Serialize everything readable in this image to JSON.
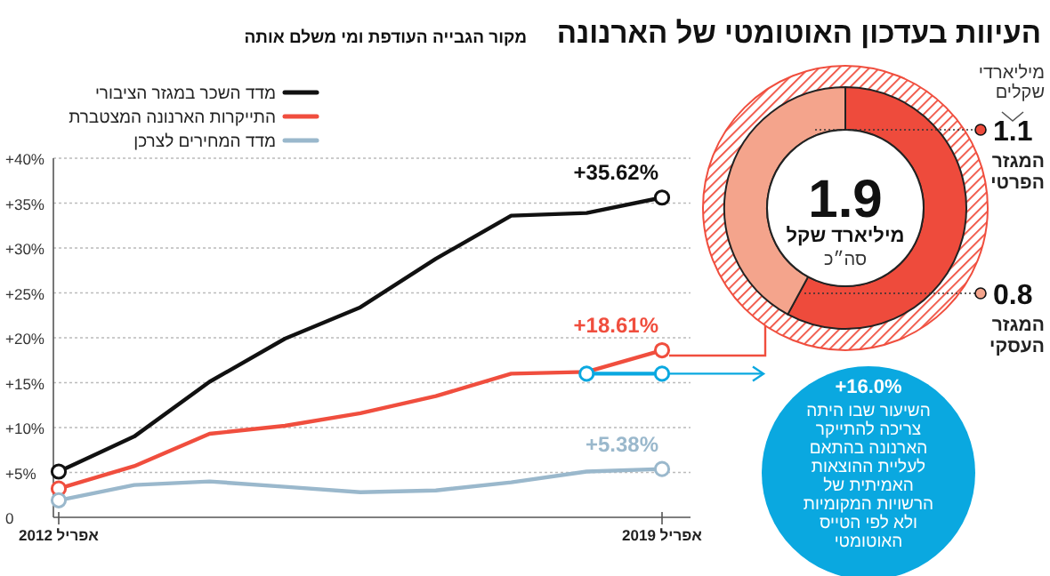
{
  "chart_data": [
    {
      "type": "line",
      "title": "העיוות בעדכון האוטומטי של הארנונה",
      "subtitle": "מקור הגבייה העודפת ומי משלם אותה",
      "categories": [
        "אפריל 2012",
        null,
        null,
        null,
        null,
        null,
        null,
        null,
        "אפריל 2019"
      ],
      "ylim": [
        0,
        40
      ],
      "yticks": [
        0,
        {
          "value": 5,
          "label": "+5%"
        },
        {
          "value": 10,
          "label": "+10%"
        },
        {
          "value": 15,
          "label": "+15%"
        },
        {
          "value": 20,
          "label": "+20%"
        },
        {
          "value": 25,
          "label": "+25%"
        },
        {
          "value": 30,
          "label": "+30%"
        },
        {
          "value": 35,
          "label": "+35%"
        },
        {
          "value": 40,
          "label": "+40%"
        }
      ],
      "grid": "y",
      "legend": "top",
      "line_style": "solid",
      "series": [
        {
          "name": "מדד השכר במגזר הציבורי",
          "color": "#111111",
          "values": [
            5.1,
            9.0,
            15.1,
            19.9,
            23.4,
            28.8,
            33.6,
            33.9,
            35.62
          ],
          "value_labels": [
            null,
            null,
            null,
            null,
            null,
            null,
            null,
            null,
            "+35.62%"
          ]
        },
        {
          "name": "התייקרות הארנונה המצטברת",
          "color": "#f04e3e",
          "values": [
            3.2,
            5.7,
            9.3,
            10.2,
            11.6,
            13.5,
            16.0,
            16.2,
            18.61
          ],
          "value_labels": [
            null,
            null,
            null,
            null,
            null,
            null,
            null,
            null,
            "+18.61%"
          ]
        },
        {
          "name": "מדד המחירים לצרכן",
          "color": "#9ab8cc",
          "values": [
            1.9,
            3.6,
            4.0,
            3.4,
            2.8,
            3.0,
            3.9,
            5.1,
            5.38
          ],
          "value_labels": [
            null,
            null,
            null,
            null,
            null,
            null,
            null,
            null,
            "+5.38%"
          ]
        },
        {
          "color": "#0aa8e0",
          "marker": "circle",
          "values": [
            null,
            null,
            null,
            null,
            null,
            null,
            null,
            16.0,
            16.0
          ]
        }
      ],
      "annotations": [
        "+16.0%",
        "השיעור שבו היתה צריכה להתייקר הארנונה בהתאם לעליית ההוצאות האמיתית של הרשויות המקומיות ולא לפי הטייס האוטומטי"
      ]
    },
    {
      "type": "donut",
      "categories": [
        "המגזר הפרטי",
        "המגזר העסקי"
      ],
      "values": [
        1.1,
        0.8
      ],
      "colors": [
        "#ee4b3c",
        "#f4a48c"
      ],
      "data_labels": true,
      "legend": "right",
      "annotations": [
        "מיליארדי שקלים",
        "1.9",
        "מיליארד שקל",
        "סה״כ"
      ]
    }
  ]
}
